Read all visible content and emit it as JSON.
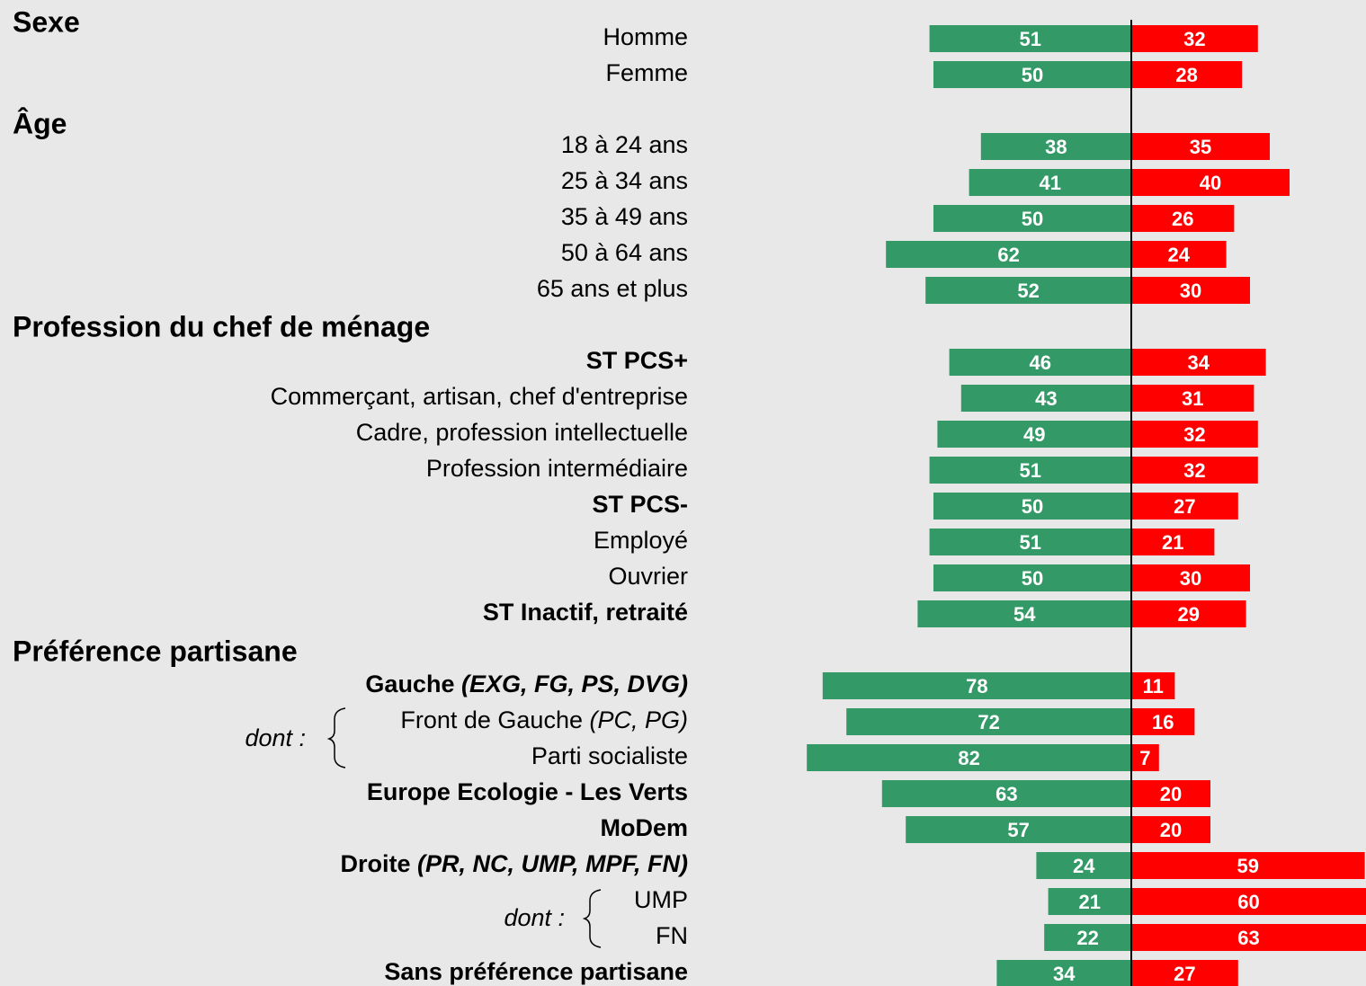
{
  "chart_data": {
    "type": "diverging_bar",
    "sections": [
      "Sexe",
      "Âge",
      "Profession du chef de ménage",
      "Préférence partisane"
    ],
    "categories": [
      "Homme",
      "Femme",
      "18 à 24 ans",
      "25 à 34 ans",
      "35 à 49 ans",
      "50 à 64 ans",
      "65 ans et plus",
      "ST PCS+",
      "Commerçant, artisan, chef d'entreprise",
      "Cadre, profession intellectuelle",
      "Profession intermédiaire",
      "ST PCS-",
      "Employé",
      "Ouvrier",
      "ST Inactif, retraité",
      "Gauche (EXG, FG, PS, DVG)",
      "Front de Gauche (PC, PG)",
      "Parti socialiste",
      "Europe Ecologie - Les Verts",
      "MoDem",
      "Droite (PR, NC, UMP, MPF, FN)",
      "UMP",
      "FN",
      "Sans préférence partisane"
    ],
    "series": [
      {
        "color": "#339966",
        "side": "left",
        "values": [
          51,
          50,
          38,
          41,
          50,
          62,
          52,
          46,
          43,
          49,
          51,
          50,
          51,
          50,
          54,
          78,
          72,
          82,
          63,
          57,
          24,
          21,
          22,
          34
        ]
      },
      {
        "color": "#ff0000",
        "side": "right",
        "values": [
          32,
          28,
          35,
          40,
          26,
          24,
          30,
          34,
          31,
          32,
          32,
          27,
          21,
          30,
          29,
          11,
          16,
          7,
          20,
          20,
          59,
          60,
          63,
          27
        ]
      }
    ],
    "annotations": [
      "dont :",
      "dont :"
    ]
  }
}
